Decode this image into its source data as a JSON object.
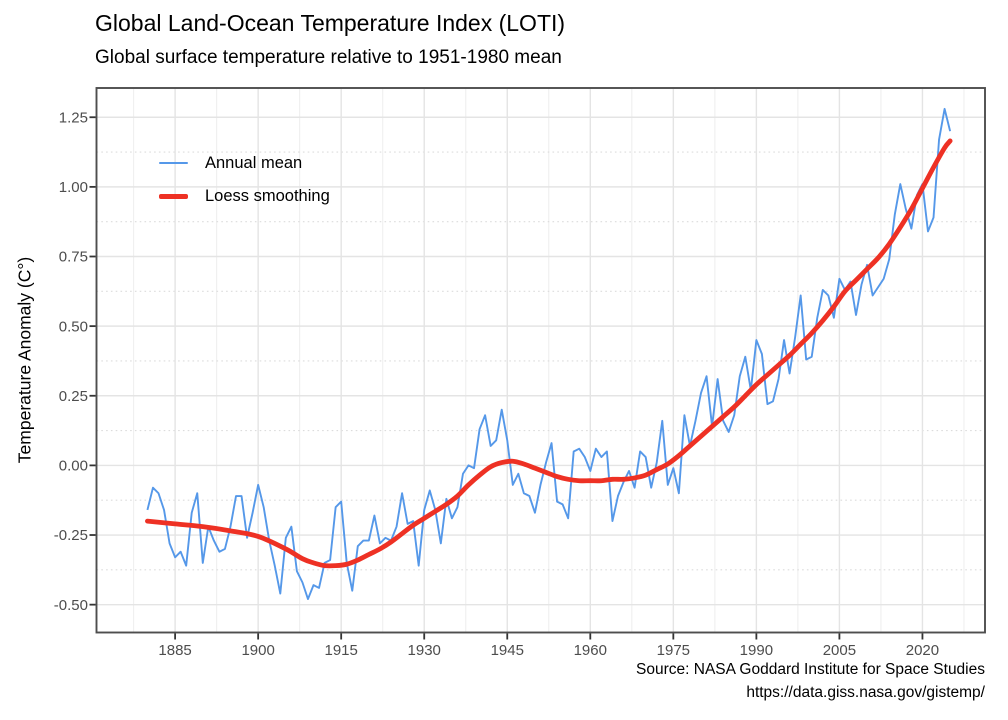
{
  "chart_data": {
    "type": "line",
    "title": "Global Land-Ocean Temperature Index (LOTI)",
    "subtitle": "Global surface temperature relative to 1951-1980 mean",
    "xlabel": "",
    "ylabel": "Temperature Anomaly (C°)",
    "caption": {
      "source": "Source: NASA Goddard Institute for Space Studies",
      "url": "https://data.giss.nasa.gov/gistemp/"
    },
    "xlim": [
      1870.8,
      2031.3
    ],
    "ylim": [
      -0.6,
      1.355
    ],
    "x_ticks": [
      1885,
      1900,
      1915,
      1930,
      1945,
      1960,
      1975,
      1990,
      2005,
      2020
    ],
    "y_ticks": [
      -0.5,
      -0.25,
      0,
      0.25,
      0.5,
      0.75,
      1,
      1.25
    ],
    "y_tick_labels": [
      "-0.50",
      "-0.25",
      "0.00",
      "0.25",
      "0.50",
      "0.75",
      "1.00",
      "1.25"
    ],
    "grid": {
      "major": true,
      "minor": true
    },
    "legend_position": "inside-top-left",
    "colors": {
      "annual_mean": "#5598E9",
      "loess": "#EE3124",
      "grid_major": "#E4E4E4",
      "grid_minor_v": "#EFEFEF",
      "grid_minor_h": "#DCDCDC",
      "panel_border": "#4E4E4E",
      "tick_label": "#4D4D4D"
    },
    "series": [
      {
        "name": "Annual mean",
        "color": "#5598E9",
        "stroke_width": 1.9,
        "smooth": false,
        "years": [
          1880,
          1881,
          1882,
          1883,
          1884,
          1885,
          1886,
          1887,
          1888,
          1889,
          1890,
          1891,
          1892,
          1893,
          1894,
          1895,
          1896,
          1897,
          1898,
          1899,
          1900,
          1901,
          1902,
          1903,
          1904,
          1905,
          1906,
          1907,
          1908,
          1909,
          1910,
          1911,
          1912,
          1913,
          1914,
          1915,
          1916,
          1917,
          1918,
          1919,
          1920,
          1921,
          1922,
          1923,
          1924,
          1925,
          1926,
          1927,
          1928,
          1929,
          1930,
          1931,
          1932,
          1933,
          1934,
          1935,
          1936,
          1937,
          1938,
          1939,
          1940,
          1941,
          1942,
          1943,
          1944,
          1945,
          1946,
          1947,
          1948,
          1949,
          1950,
          1951,
          1952,
          1953,
          1954,
          1955,
          1956,
          1957,
          1958,
          1959,
          1960,
          1961,
          1962,
          1963,
          1964,
          1965,
          1966,
          1967,
          1968,
          1969,
          1970,
          1971,
          1972,
          1973,
          1974,
          1975,
          1976,
          1977,
          1978,
          1979,
          1980,
          1981,
          1982,
          1983,
          1984,
          1985,
          1986,
          1987,
          1988,
          1989,
          1990,
          1991,
          1992,
          1993,
          1994,
          1995,
          1996,
          1997,
          1998,
          1999,
          2000,
          2001,
          2002,
          2003,
          2004,
          2005,
          2006,
          2007,
          2008,
          2009,
          2010,
          2011,
          2012,
          2013,
          2014,
          2015,
          2016,
          2017,
          2018,
          2019,
          2020,
          2021,
          2022,
          2023,
          2024,
          2025
        ],
        "values": [
          -0.16,
          -0.08,
          -0.1,
          -0.16,
          -0.28,
          -0.33,
          -0.31,
          -0.36,
          -0.17,
          -0.1,
          -0.35,
          -0.22,
          -0.27,
          -0.31,
          -0.3,
          -0.22,
          -0.11,
          -0.11,
          -0.26,
          -0.17,
          -0.07,
          -0.15,
          -0.27,
          -0.36,
          -0.46,
          -0.26,
          -0.22,
          -0.38,
          -0.42,
          -0.48,
          -0.43,
          -0.44,
          -0.35,
          -0.34,
          -0.15,
          -0.13,
          -0.35,
          -0.45,
          -0.29,
          -0.27,
          -0.27,
          -0.18,
          -0.28,
          -0.26,
          -0.27,
          -0.22,
          -0.1,
          -0.21,
          -0.2,
          -0.36,
          -0.16,
          -0.09,
          -0.16,
          -0.28,
          -0.12,
          -0.19,
          -0.15,
          -0.03,
          0.0,
          -0.01,
          0.13,
          0.18,
          0.07,
          0.09,
          0.2,
          0.09,
          -0.07,
          -0.03,
          -0.1,
          -0.11,
          -0.17,
          -0.07,
          0.01,
          0.08,
          -0.13,
          -0.14,
          -0.19,
          0.05,
          0.06,
          0.03,
          -0.02,
          0.06,
          0.03,
          0.05,
          -0.2,
          -0.11,
          -0.06,
          -0.02,
          -0.08,
          0.05,
          0.03,
          -0.08,
          0.01,
          0.16,
          -0.07,
          -0.01,
          -0.1,
          0.18,
          0.07,
          0.16,
          0.26,
          0.32,
          0.14,
          0.31,
          0.16,
          0.12,
          0.18,
          0.32,
          0.39,
          0.27,
          0.45,
          0.4,
          0.22,
          0.23,
          0.31,
          0.45,
          0.33,
          0.46,
          0.61,
          0.38,
          0.39,
          0.53,
          0.63,
          0.61,
          0.53,
          0.67,
          0.63,
          0.66,
          0.54,
          0.65,
          0.72,
          0.61,
          0.64,
          0.67,
          0.74,
          0.9,
          1.01,
          0.92,
          0.85,
          0.97,
          1.01,
          0.84,
          0.89,
          1.17,
          1.28,
          1.2
        ]
      },
      {
        "name": "Loess smoothing",
        "color": "#EE3124",
        "stroke_width": 4.8,
        "smooth": true,
        "years": [
          1880,
          1885,
          1890,
          1895,
          1900,
          1905,
          1908,
          1910,
          1912,
          1914,
          1916,
          1918,
          1920,
          1922,
          1924,
          1926,
          1928,
          1930,
          1932,
          1934,
          1936,
          1938,
          1940,
          1942,
          1944,
          1946,
          1948,
          1950,
          1952,
          1954,
          1956,
          1958,
          1960,
          1962,
          1964,
          1966,
          1968,
          1970,
          1972,
          1974,
          1976,
          1978,
          1980,
          1982,
          1984,
          1986,
          1988,
          1990,
          1992,
          1994,
          1996,
          1998,
          2000,
          2002,
          2004,
          2006,
          2008,
          2010,
          2012,
          2014,
          2016,
          2018,
          2020,
          2022,
          2024,
          2025
        ],
        "values": [
          -0.2,
          -0.21,
          -0.22,
          -0.235,
          -0.255,
          -0.3,
          -0.335,
          -0.35,
          -0.36,
          -0.36,
          -0.355,
          -0.34,
          -0.32,
          -0.3,
          -0.275,
          -0.245,
          -0.215,
          -0.19,
          -0.165,
          -0.14,
          -0.11,
          -0.07,
          -0.035,
          -0.005,
          0.01,
          0.015,
          0.005,
          -0.01,
          -0.025,
          -0.04,
          -0.05,
          -0.055,
          -0.055,
          -0.055,
          -0.05,
          -0.05,
          -0.045,
          -0.035,
          -0.015,
          0.005,
          0.035,
          0.07,
          0.105,
          0.14,
          0.175,
          0.21,
          0.25,
          0.29,
          0.325,
          0.36,
          0.395,
          0.435,
          0.475,
          0.52,
          0.57,
          0.625,
          0.665,
          0.705,
          0.745,
          0.795,
          0.855,
          0.92,
          0.995,
          1.07,
          1.14,
          1.165
        ]
      }
    ]
  }
}
